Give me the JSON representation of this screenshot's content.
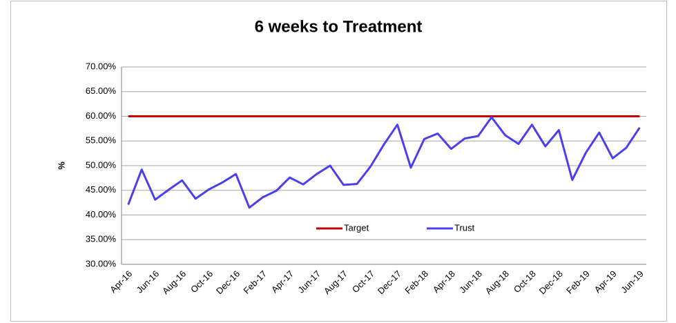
{
  "chart_data": {
    "type": "line",
    "title": "6 weeks to Treatment",
    "y_label": "%",
    "categories": [
      "Apr-16",
      null,
      "Jun-16",
      null,
      "Aug-16",
      null,
      "Oct-16",
      null,
      "Dec-16",
      null,
      "Feb-17",
      null,
      "Apr-17",
      null,
      "Jun-17",
      null,
      "Aug-17",
      null,
      "Oct-17",
      null,
      "Dec-17",
      null,
      "Feb-18",
      null,
      "Apr-18",
      null,
      "Jun-18",
      null,
      "Aug-18",
      null,
      "Oct-18",
      null,
      "Dec-18",
      null,
      "Feb-19",
      null,
      "Apr-19",
      null,
      "Jun-19"
    ],
    "series": [
      {
        "name": "Target",
        "color": "#c00000",
        "values": [
          60,
          60,
          60,
          60,
          60,
          60,
          60,
          60,
          60,
          60,
          60,
          60,
          60,
          60,
          60,
          60,
          60,
          60,
          60,
          60,
          60,
          60,
          60,
          60,
          60,
          60,
          60,
          60,
          60,
          60,
          60,
          60,
          60,
          60,
          60,
          60,
          60,
          60,
          60
        ]
      },
      {
        "name": "Trust",
        "color": "#4a3ff0",
        "values": [
          42.1,
          49.2,
          43.1,
          45.1,
          47.0,
          43.3,
          45.2,
          46.6,
          48.3,
          41.5,
          43.6,
          44.9,
          47.6,
          46.2,
          48.3,
          50.0,
          46.1,
          46.3,
          49.8,
          54.3,
          58.3,
          49.6,
          55.4,
          56.5,
          53.4,
          55.5,
          56.0,
          59.8,
          56.2,
          54.4,
          58.3,
          53.9,
          57.2,
          47.1,
          52.6,
          56.7,
          51.5,
          53.6,
          57.7
        ]
      }
    ],
    "ylim": [
      30,
      70
    ],
    "yticks": [
      {
        "value": 30,
        "label": "30.00%"
      },
      {
        "value": 35,
        "label": "35.00%"
      },
      {
        "value": 40,
        "label": "40.00%"
      },
      {
        "value": 45,
        "label": "45.00%"
      },
      {
        "value": 50,
        "label": "50.00%"
      },
      {
        "value": 55,
        "label": "55.00%"
      },
      {
        "value": 60,
        "label": "60.00%"
      },
      {
        "value": 65,
        "label": "65.00%"
      },
      {
        "value": 70,
        "label": "70.00%"
      }
    ],
    "grid": true,
    "legend": "bottom"
  }
}
